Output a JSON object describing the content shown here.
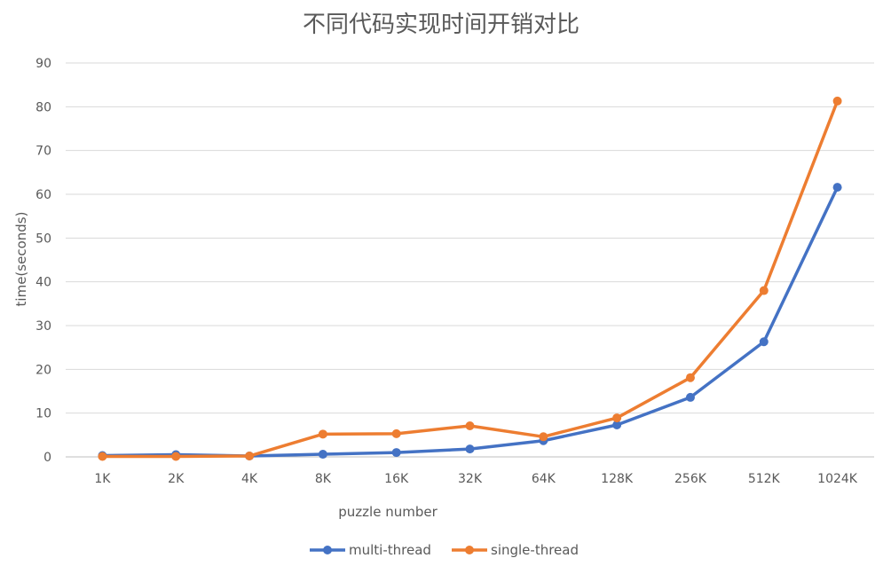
{
  "chart_data": {
    "type": "line",
    "title": "不同代码实现时间开销对比",
    "xlabel": "puzzle number",
    "ylabel": "time(seconds)",
    "categories": [
      "1K",
      "2K",
      "4K",
      "8K",
      "16K",
      "32K",
      "64K",
      "128K",
      "256K",
      "512K",
      "1024K"
    ],
    "ylim": [
      0,
      90
    ],
    "yticks": [
      0,
      10,
      20,
      30,
      40,
      50,
      60,
      70,
      80,
      90
    ],
    "grid": true,
    "legend_position": "bottom",
    "series": [
      {
        "name": "multi-thread",
        "color": "#4472C4",
        "values": [
          0.3,
          0.5,
          0.2,
          0.6,
          1.0,
          1.8,
          3.7,
          7.3,
          13.6,
          26.3,
          61.6
        ]
      },
      {
        "name": "single-thread",
        "color": "#ED7D31",
        "values": [
          0.1,
          0.1,
          0.2,
          5.2,
          5.3,
          7.1,
          4.6,
          8.9,
          18.1,
          38.0,
          81.3
        ]
      }
    ]
  }
}
